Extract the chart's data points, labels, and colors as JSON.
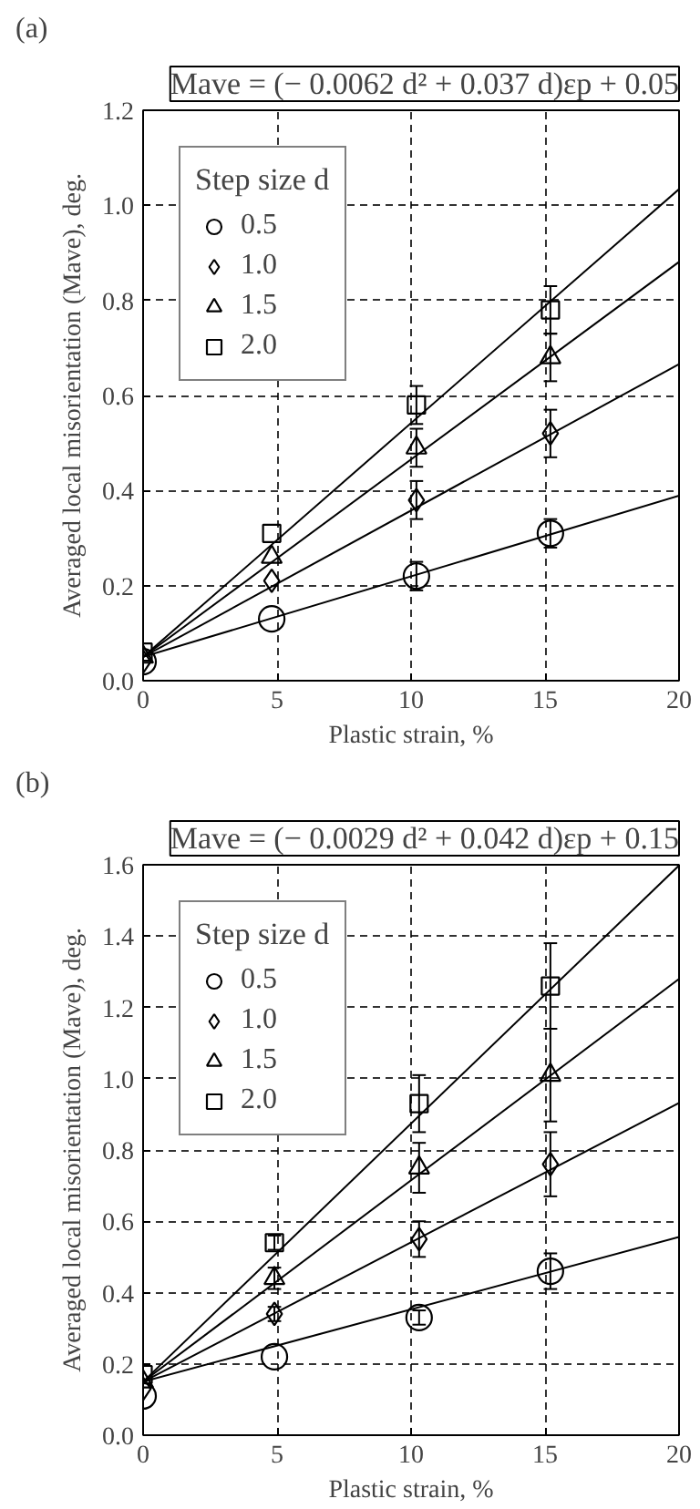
{
  "chart_data": [
    {
      "type": "scatter",
      "title": "Mave = (− 0.0062 d² + 0.037 d)εp + 0.05",
      "xlabel": "Plastic strain, %",
      "ylabel": "Averaged local misorientation (Mave), deg.",
      "legend_title": "Step size d",
      "annotations": [
        "(a)"
      ],
      "xlim": [
        0,
        20
      ],
      "xticks": [
        0,
        5,
        10,
        15,
        20
      ],
      "ylim": [
        0,
        1.2
      ],
      "yticks": [
        {
          "value": 0,
          "label": "0.0"
        },
        {
          "value": 0.2,
          "label": "0.2"
        },
        {
          "value": 0.4,
          "label": "0.4"
        },
        {
          "value": 0.6,
          "label": "0.6"
        },
        {
          "value": 0.8,
          "label": "0.8"
        },
        {
          "value": 1.0,
          "label": "1.0"
        },
        {
          "value": 1.2,
          "label": "1.2"
        }
      ],
      "grid": true,
      "legend": "top left",
      "series": [
        {
          "name": "0.5",
          "color": "#000000",
          "marker": "circle",
          "x": [
            0,
            4.8,
            10.2,
            15.2
          ],
          "values": [
            0.04,
            0.13,
            0.22,
            0.31
          ],
          "errors": [
            null,
            null,
            0.03,
            0.03
          ]
        },
        {
          "name": "1.0",
          "color": "#000000",
          "marker": "diamond",
          "x": [
            0,
            4.8,
            10.2,
            15.2
          ],
          "values": [
            0.04,
            0.21,
            0.38,
            0.52
          ],
          "errors": [
            null,
            null,
            0.04,
            0.05
          ]
        },
        {
          "name": "1.5",
          "color": "#000000",
          "marker": "triangle",
          "x": [
            0,
            4.8,
            10.2,
            15.2
          ],
          "values": [
            0.05,
            0.26,
            0.49,
            0.68
          ],
          "errors": [
            null,
            null,
            0.04,
            0.05
          ]
        },
        {
          "name": "2.0",
          "color": "#000000",
          "marker": "square",
          "x": [
            0,
            4.8,
            10.2,
            15.2
          ],
          "values": [
            0.06,
            0.31,
            0.58,
            0.78
          ],
          "errors": [
            null,
            null,
            0.04,
            0.05
          ]
        },
        {
          "type": "line",
          "color": "#000000",
          "marker": "none",
          "x": [
            0,
            20
          ],
          "values": [
            0.05,
            0.389
          ]
        },
        {
          "type": "line",
          "color": "#000000",
          "marker": "none",
          "x": [
            0,
            20
          ],
          "values": [
            0.05,
            0.666
          ]
        },
        {
          "type": "line",
          "color": "#000000",
          "marker": "none",
          "x": [
            0,
            20
          ],
          "values": [
            0.05,
            0.881
          ]
        },
        {
          "type": "line",
          "color": "#000000",
          "marker": "none",
          "x": [
            0,
            20
          ],
          "values": [
            0.05,
            1.034
          ]
        }
      ]
    },
    {
      "type": "scatter",
      "title": "Mave = (− 0.0029 d² + 0.042 d)εp + 0.15",
      "xlabel": "Plastic strain, %",
      "ylabel": "Averaged local misorientation (Mave), deg.",
      "legend_title": "Step size d",
      "annotations": [
        "(b)"
      ],
      "xlim": [
        0,
        20
      ],
      "xticks": [
        0,
        5,
        10,
        15,
        20
      ],
      "ylim": [
        0,
        1.6
      ],
      "yticks": [
        {
          "value": 0,
          "label": "0.0"
        },
        {
          "value": 0.2,
          "label": "0.2"
        },
        {
          "value": 0.4,
          "label": "0.4"
        },
        {
          "value": 0.6,
          "label": "0.6"
        },
        {
          "value": 0.8,
          "label": "0.8"
        },
        {
          "value": 1.0,
          "label": "1.0"
        },
        {
          "value": 1.2,
          "label": "1.2"
        },
        {
          "value": 1.4,
          "label": "1.4"
        },
        {
          "value": 1.6,
          "label": "1.6"
        }
      ],
      "grid": true,
      "legend": "top left",
      "series": [
        {
          "name": "0.5",
          "color": "#000000",
          "marker": "circle",
          "x": [
            0,
            4.9,
            10.3,
            15.2
          ],
          "values": [
            0.11,
            0.22,
            0.33,
            0.46
          ],
          "errors": [
            null,
            null,
            0.02,
            0.05
          ]
        },
        {
          "name": "1.0",
          "color": "#000000",
          "marker": "diamond",
          "x": [
            0,
            4.9,
            10.3,
            15.2
          ],
          "values": [
            0.13,
            0.34,
            0.55,
            0.76
          ],
          "errors": [
            null,
            0.02,
            0.05,
            0.09
          ]
        },
        {
          "name": "1.5",
          "color": "#000000",
          "marker": "triangle",
          "x": [
            0,
            4.9,
            10.3,
            15.2
          ],
          "values": [
            0.15,
            0.44,
            0.75,
            1.01
          ],
          "errors": [
            null,
            0.03,
            0.07,
            0.13
          ]
        },
        {
          "name": "2.0",
          "color": "#000000",
          "marker": "square",
          "x": [
            0,
            4.9,
            10.3,
            15.2
          ],
          "values": [
            0.17,
            0.54,
            0.93,
            1.26
          ],
          "errors": [
            null,
            0.02,
            0.08,
            0.12
          ]
        },
        {
          "type": "line",
          "color": "#000000",
          "marker": "none",
          "x": [
            0,
            20
          ],
          "values": [
            0.15,
            0.556
          ]
        },
        {
          "type": "line",
          "color": "#000000",
          "marker": "none",
          "x": [
            0,
            20
          ],
          "values": [
            0.15,
            0.932
          ]
        },
        {
          "type": "line",
          "color": "#000000",
          "marker": "none",
          "x": [
            0,
            20
          ],
          "values": [
            0.15,
            1.28
          ]
        },
        {
          "type": "line",
          "color": "#000000",
          "marker": "none",
          "x": [
            0,
            20
          ],
          "values": [
            0.15,
            1.598
          ]
        }
      ]
    }
  ]
}
